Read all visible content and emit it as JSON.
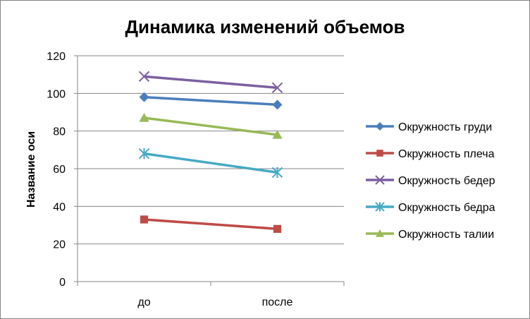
{
  "chart_data": {
    "type": "line",
    "title": "Динамика изменений объемов",
    "xlabel": "",
    "ylabel": "Название оси",
    "categories": [
      "до",
      "после"
    ],
    "ylim": [
      0,
      120
    ],
    "yticks": [
      0,
      20,
      40,
      60,
      80,
      100,
      120
    ],
    "grid": true,
    "legend_position": "right",
    "series": [
      {
        "name": "Окружность груди",
        "values": [
          98,
          94
        ],
        "color": "#4a7ebb",
        "marker": "diamond"
      },
      {
        "name": "Окружность плеча",
        "values": [
          33,
          28
        ],
        "color": "#be4b48",
        "marker": "square"
      },
      {
        "name": "Окружность бедер",
        "values": [
          109,
          103
        ],
        "color": "#7d5fa0",
        "marker": "x"
      },
      {
        "name": "Окружность бедра",
        "values": [
          68,
          58
        ],
        "color": "#46aac5",
        "marker": "star"
      },
      {
        "name": "Окружность талии",
        "values": [
          87,
          78
        ],
        "color": "#98b954",
        "marker": "triangle"
      }
    ]
  }
}
